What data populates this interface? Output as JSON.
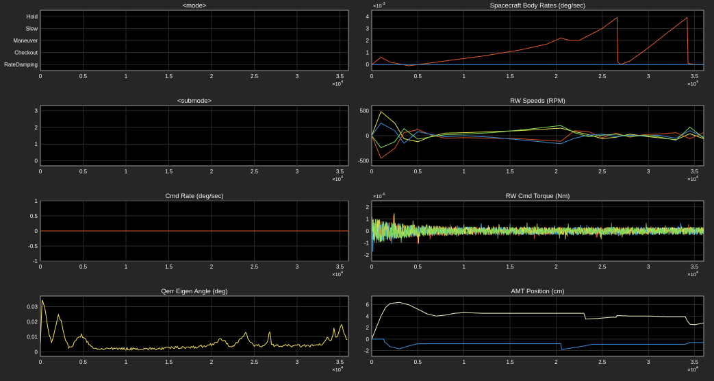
{
  "chart_data": [
    {
      "id": "mode",
      "type": "line",
      "title": "<mode>",
      "xlim": [
        0,
        36000
      ],
      "ylim": [
        0.5,
        5.5
      ],
      "yticks": [
        1,
        2,
        3,
        4,
        5
      ],
      "ytick_labels": [
        "RateDamping",
        "Checkout",
        "Maneuver",
        "Slew",
        "Hold"
      ],
      "x_exponent": "×10^4",
      "grid": true,
      "series": []
    },
    {
      "id": "body-rates",
      "type": "line",
      "title": "Spacecraft Body Rates (deg/sec)",
      "xlim": [
        0,
        36000
      ],
      "ylim": [
        -0.0005,
        0.0045
      ],
      "yticks": [
        0,
        0.001,
        0.002,
        0.003,
        0.004
      ],
      "ytick_labels": [
        "0",
        "1",
        "2",
        "3",
        "4"
      ],
      "y_exponent": "×10^-3",
      "x_exponent": "×10^4",
      "grid": true,
      "series": [
        {
          "color": "#e05a2b",
          "x": [
            0,
            1000,
            2000,
            4000,
            5000,
            8000,
            12000,
            16000,
            19000,
            20500,
            21500,
            22500,
            25000,
            26600,
            26700,
            27000,
            28000,
            30000,
            32000,
            34200,
            34300,
            35000,
            36000
          ],
          "values": [
            0,
            0.0006,
            0.0002,
            -0.0001,
            0,
            0.0003,
            0.0007,
            0.0012,
            0.0017,
            0.0022,
            0.002,
            0.002,
            0.003,
            0.0039,
            0.0002,
            0,
            0.0003,
            0.0014,
            0.0026,
            0.0039,
            0.0001,
            0,
            0
          ]
        },
        {
          "color": "#3a8fd9",
          "x": [
            0,
            36000
          ],
          "values": [
            0,
            0
          ]
        }
      ]
    },
    {
      "id": "submode",
      "type": "line",
      "title": "<submode>",
      "xlim": [
        0,
        36000
      ],
      "ylim": [
        -0.3,
        3.3
      ],
      "yticks": [
        0,
        1,
        2,
        3
      ],
      "ytick_labels": [
        "0",
        "1",
        "2",
        "3"
      ],
      "x_exponent": "×10^4",
      "grid": true,
      "series": []
    },
    {
      "id": "rw-speeds",
      "type": "line",
      "title": "RW Speeds (RPM)",
      "xlim": [
        0,
        36000
      ],
      "ylim": [
        -600,
        600
      ],
      "yticks": [
        -500,
        0,
        500
      ],
      "ytick_labels": [
        "-500",
        "0",
        "500"
      ],
      "x_exponent": "×10^4",
      "grid": true,
      "series": [
        {
          "color": "#e6e34a",
          "x": [
            0,
            1000,
            2500,
            3500,
            5000,
            6500,
            8000,
            10000,
            13000,
            16000,
            20500,
            22000,
            23500,
            25000,
            26500,
            28000,
            29500,
            31000,
            33000,
            34500,
            36000
          ],
          "values": [
            0,
            480,
            250,
            -60,
            -120,
            -10,
            50,
            60,
            80,
            100,
            150,
            80,
            20,
            -60,
            -30,
            30,
            -10,
            -40,
            -80,
            40,
            -60
          ]
        },
        {
          "color": "#d9541e",
          "x": [
            0,
            1000,
            2500,
            3500,
            5000,
            6500,
            8000,
            10000,
            13000,
            16000,
            20500,
            22000,
            23500,
            25000,
            26500,
            28000,
            29500,
            31000,
            33000,
            34500,
            36000
          ],
          "values": [
            0,
            -450,
            -250,
            60,
            120,
            10,
            -50,
            -40,
            -50,
            -60,
            -110,
            100,
            80,
            -40,
            50,
            -30,
            20,
            30,
            60,
            -60,
            60
          ]
        },
        {
          "color": "#3a8fd9",
          "x": [
            0,
            1000,
            2500,
            3500,
            5000,
            6500,
            8000,
            10000,
            13000,
            16000,
            20500,
            22000,
            23500,
            25000,
            26500,
            28000,
            29500,
            31000,
            33000,
            34500,
            36000
          ],
          "values": [
            0,
            250,
            100,
            -150,
            80,
            20,
            -20,
            0,
            -30,
            -80,
            -160,
            -50,
            10,
            30,
            -20,
            10,
            -10,
            10,
            -50,
            100,
            -30
          ]
        },
        {
          "color": "#7ed957",
          "x": [
            0,
            1000,
            2500,
            3500,
            5000,
            6500,
            8000,
            10000,
            13000,
            16000,
            20500,
            22000,
            23500,
            25000,
            26500,
            28000,
            29500,
            31000,
            33000,
            34500,
            36000
          ],
          "values": [
            0,
            -240,
            -120,
            140,
            -70,
            -20,
            20,
            30,
            60,
            110,
            200,
            60,
            -20,
            10,
            30,
            -20,
            10,
            -20,
            -90,
            170,
            -50
          ]
        }
      ]
    },
    {
      "id": "cmd-rate",
      "type": "line",
      "title": "Cmd Rate (deg/sec)",
      "xlim": [
        0,
        36000
      ],
      "ylim": [
        -1,
        1
      ],
      "yticks": [
        -1,
        -0.5,
        0,
        0.5,
        1
      ],
      "ytick_labels": [
        "-1",
        "-0.5",
        "0",
        "0.5",
        "1"
      ],
      "x_exponent": "×10^4",
      "grid": true,
      "series": [
        {
          "color": "#e05a2b",
          "x": [
            0,
            36000
          ],
          "values": [
            0,
            0
          ]
        }
      ]
    },
    {
      "id": "rw-cmd-torque",
      "type": "line",
      "title": "RW Cmd Torque (Nm)",
      "xlim": [
        0,
        36000
      ],
      "ylim": [
        -2.5e-06,
        2.5e-06
      ],
      "yticks": [
        -2e-06,
        -1e-06,
        0,
        1e-06,
        2e-06
      ],
      "ytick_labels": [
        "-2",
        "-1",
        "0",
        "1",
        "2"
      ],
      "y_exponent": "×10^-6",
      "x_exponent": "×10^4",
      "grid": true,
      "noise": {
        "amplitude_start": 2.2e-06,
        "amplitude_floor": 6e-07,
        "decay_x": 3000
      },
      "series": [
        {
          "color": "#e05a2b",
          "x": [],
          "values": []
        },
        {
          "color": "#3aa8e8",
          "x": [],
          "values": []
        },
        {
          "color": "#e6e34a",
          "x": [],
          "values": []
        },
        {
          "color": "#7ed957",
          "x": [],
          "values": []
        }
      ]
    },
    {
      "id": "qerr",
      "type": "line",
      "title": "Qerr Eigen Angle (deg)",
      "xlim": [
        0,
        36000
      ],
      "ylim": [
        -0.003,
        0.037
      ],
      "yticks": [
        0,
        0.01,
        0.02,
        0.03
      ],
      "ytick_labels": [
        "0",
        "0.01",
        "0.02",
        "0.03"
      ],
      "x_exponent": "×10^4",
      "grid": true,
      "series": [
        {
          "color": "#f2e255",
          "x": [
            0,
            200,
            500,
            900,
            1300,
            1700,
            2100,
            2400,
            2800,
            3300,
            3800,
            4300,
            4800,
            5300,
            5800,
            6300,
            7000,
            8000,
            10000,
            12000,
            14000,
            16000,
            18000,
            19500,
            20500,
            21000,
            21500,
            22000,
            22500,
            23000,
            23500,
            24000,
            24500,
            25000,
            25500,
            26000,
            26500,
            26800,
            27000,
            27300,
            28000,
            29000,
            30000,
            31000,
            32000,
            33000,
            33500,
            34000,
            34300,
            34500,
            34800,
            35200,
            35500,
            36000
          ],
          "values": [
            0.005,
            0.034,
            0.03,
            0.015,
            0.006,
            0.015,
            0.024,
            0.021,
            0.01,
            0.003,
            0.004,
            0.009,
            0.011,
            0.008,
            0.004,
            0.002,
            0.002,
            0.002,
            0.002,
            0.002,
            0.002,
            0.003,
            0.003,
            0.004,
            0.006,
            0.009,
            0.007,
            0.004,
            0.004,
            0.006,
            0.009,
            0.012,
            0.007,
            0.004,
            0.004,
            0.004,
            0.006,
            0.014,
            0.005,
            0.004,
            0.004,
            0.004,
            0.004,
            0.004,
            0.004,
            0.005,
            0.009,
            0.007,
            0.015,
            0.009,
            0.012,
            0.018,
            0.012,
            0.006
          ]
        }
      ]
    },
    {
      "id": "amt-position",
      "type": "line",
      "title": "AMT Position (cm)",
      "xlim": [
        0,
        36000
      ],
      "ylim": [
        -3,
        7.5
      ],
      "yticks": [
        -2,
        0,
        2,
        4,
        6
      ],
      "ytick_labels": [
        "-2",
        "0",
        "2",
        "4",
        "6"
      ],
      "x_exponent": "×10^4",
      "grid": true,
      "series": [
        {
          "color": "#f2f2c8",
          "x": [
            0,
            500,
            1000,
            1500,
            2000,
            3000,
            4000,
            5000,
            6000,
            7000,
            8000,
            9000,
            10000,
            12000,
            14000,
            16000,
            18000,
            20000,
            22000,
            23000,
            23200,
            24500,
            26000,
            26500,
            26600,
            28000,
            30000,
            32000,
            34000,
            34200,
            34500,
            35000,
            36000
          ],
          "values": [
            0,
            2,
            4,
            5.5,
            6.2,
            6.4,
            6,
            5.2,
            4.4,
            4,
            4.2,
            4.5,
            4.6,
            4.5,
            4.5,
            4.5,
            4.5,
            4.5,
            4.5,
            4.5,
            3.5,
            3.6,
            3.8,
            3.8,
            4.1,
            4,
            4,
            3.9,
            3.9,
            3.2,
            2.6,
            2.5,
            2.8
          ]
        },
        {
          "color": "#3a8fd9",
          "x": [
            0,
            1300,
            1400,
            2000,
            3000,
            4000,
            5000,
            6000,
            8000,
            10000,
            14000,
            18000,
            20000,
            20500,
            20600,
            21500,
            23000,
            24000,
            26000,
            28000,
            30000,
            32000,
            34000,
            34500,
            36000
          ],
          "values": [
            0,
            0,
            -0.5,
            -1.3,
            -1.7,
            -1.2,
            -0.8,
            -0.8,
            -0.8,
            -0.8,
            -0.8,
            -0.8,
            -0.8,
            -0.8,
            -1.8,
            -1.6,
            -1.2,
            -0.9,
            -0.9,
            -0.9,
            -0.9,
            -0.9,
            -0.9,
            -0.6,
            -0.6
          ]
        }
      ]
    }
  ]
}
